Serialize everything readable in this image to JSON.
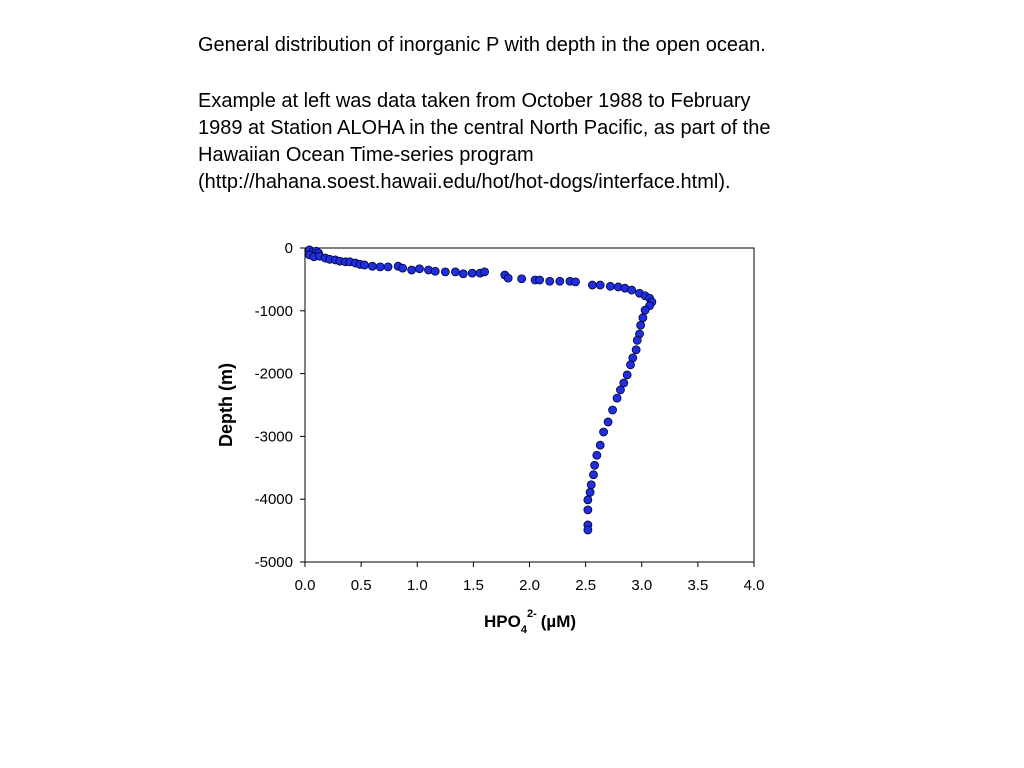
{
  "heading": "General distribution of inorganic P with depth in the open ocean.",
  "paragraph_lines": [
    "Example at left was data taken from October 1988 to February",
    "1989 at Station ALOHA in the central North Pacific, as part of the",
    "Hawaiian Ocean Time-series program",
    "(http://hahana.soest.hawaii.edu/hot/hot-dogs/interface.html)."
  ],
  "chart_data": {
    "type": "scatter",
    "xlabel": {
      "text": "HPO",
      "subscript": "4",
      "superscript": "2-",
      "unit": "(µM)"
    },
    "ylabel": "Depth (m)",
    "color": "#1f2fe0",
    "xlim": [
      0,
      4
    ],
    "xticks": [
      {
        "value": 0,
        "label": "0.0"
      },
      0.5,
      {
        "value": 1,
        "label": "1.0"
      },
      1.5,
      {
        "value": 2,
        "label": "2.0"
      },
      2.5,
      {
        "value": 3,
        "label": "3.0"
      },
      3.5,
      {
        "value": 4,
        "label": "4.0"
      }
    ],
    "ylim": [
      -5000,
      0
    ],
    "yticks": [
      0,
      -1000,
      -2000,
      -3000,
      -4000,
      -5000
    ],
    "x": [
      0.04,
      0.07,
      0.1,
      0.12,
      0.04,
      0.08,
      0.13,
      0.18,
      0.22,
      0.27,
      0.31,
      0.36,
      0.4,
      0.45,
      0.49,
      0.53,
      0.6,
      0.67,
      0.74,
      0.83,
      0.87,
      0.95,
      1.02,
      1.1,
      1.16,
      1.25,
      1.34,
      1.41,
      1.49,
      1.56,
      1.6,
      1.78,
      1.81,
      1.93,
      2.05,
      2.09,
      2.18,
      2.27,
      2.36,
      2.41,
      2.56,
      2.63,
      2.72,
      2.79,
      2.85,
      2.91,
      2.98,
      3.03,
      3.07,
      3.09,
      3.07,
      3.03,
      3.01,
      2.99,
      2.98,
      2.96,
      2.95,
      2.92,
      2.9,
      2.87,
      2.84,
      2.81,
      2.78,
      2.74,
      2.7,
      2.66,
      2.63,
      2.6,
      2.58,
      2.57,
      2.55,
      2.54,
      2.52,
      2.52,
      2.52,
      2.52
    ],
    "values": [
      -30,
      -60,
      -50,
      -80,
      -110,
      -140,
      -130,
      -160,
      -180,
      -190,
      -210,
      -220,
      -220,
      -240,
      -260,
      -270,
      -290,
      -300,
      -300,
      -290,
      -320,
      -350,
      -330,
      -350,
      -370,
      -380,
      -380,
      -410,
      -400,
      -400,
      -380,
      -430,
      -480,
      -490,
      -510,
      -510,
      -530,
      -530,
      -530,
      -540,
      -590,
      -590,
      -610,
      -620,
      -640,
      -670,
      -720,
      -760,
      -800,
      -860,
      -920,
      -990,
      -1110,
      -1230,
      -1370,
      -1470,
      -1620,
      -1750,
      -1860,
      -2020,
      -2150,
      -2260,
      -2390,
      -2580,
      -2770,
      -2930,
      -3140,
      -3300,
      -3460,
      -3610,
      -3770,
      -3890,
      -4010,
      -4170,
      -4410,
      -4490
    ]
  }
}
